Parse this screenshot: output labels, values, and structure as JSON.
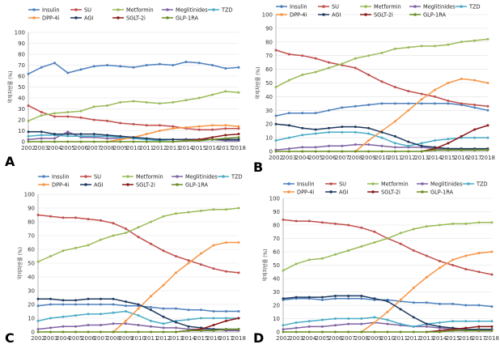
{
  "series_colors": {
    "Insulin": "#4f81bd",
    "SU": "#c0504d",
    "Metformin": "#9bbb59",
    "Meglitinides": "#8064a2",
    "TZD": "#4bacc6",
    "DPP-4i": "#f79646",
    "AGI": "#1f3a5f",
    "SGLT-2i": "#8b1a1a",
    "GLP-1RA": "#6b8e23"
  },
  "chart_data": [
    {
      "type": "line",
      "panel_label": "A",
      "ylabel": "약제처방률 (%)",
      "x": [
        2002,
        2003,
        2004,
        2005,
        2006,
        2007,
        2008,
        2009,
        2010,
        2011,
        2012,
        2013,
        2014,
        2015,
        2016,
        2017,
        2018
      ],
      "xlim": [
        2002,
        2018
      ],
      "ylim": [
        0,
        100
      ],
      "yticks": [
        0,
        10,
        20,
        30,
        40,
        50,
        60,
        70,
        80,
        90,
        100
      ],
      "legend_rows": [
        [
          "Insulin",
          "SU",
          "Metformin",
          "Meglitinides",
          "TZD"
        ],
        [
          "DPP-4i",
          "AGI",
          "SGLT-2i",
          "GLP-1RA"
        ]
      ],
      "series": [
        {
          "name": "Insulin",
          "values": [
            62,
            68,
            72,
            63,
            66,
            69,
            70,
            69,
            68,
            70,
            71,
            70,
            73,
            72,
            70,
            67,
            68
          ]
        },
        {
          "name": "SU",
          "values": [
            33,
            27,
            23,
            23,
            22,
            20,
            19,
            17,
            16,
            15,
            15,
            14,
            12,
            11,
            11,
            12,
            12
          ]
        },
        {
          "name": "Metformin",
          "values": [
            19,
            24,
            26,
            27,
            28,
            32,
            33,
            36,
            37,
            36,
            35,
            36,
            38,
            40,
            43,
            46,
            45
          ]
        },
        {
          "name": "Meglitinides",
          "values": [
            2,
            3,
            3,
            9,
            4,
            4,
            3,
            3,
            3,
            2,
            2,
            2,
            2,
            2,
            2,
            1,
            1
          ]
        },
        {
          "name": "TZD",
          "values": [
            5,
            6,
            6,
            5,
            5,
            5,
            5,
            4,
            3,
            2,
            1,
            2,
            2,
            2,
            2,
            2,
            2
          ]
        },
        {
          "name": "DPP-4i",
          "values": [
            null,
            null,
            null,
            null,
            null,
            null,
            0,
            2,
            4,
            7,
            10,
            12,
            13,
            14,
            15,
            15,
            14
          ]
        },
        {
          "name": "AGI",
          "values": [
            9,
            9,
            7,
            7,
            7,
            7,
            6,
            5,
            4,
            3,
            2,
            2,
            2,
            2,
            2,
            2,
            2
          ]
        },
        {
          "name": "SGLT-2i",
          "values": [
            null,
            null,
            null,
            null,
            null,
            null,
            null,
            null,
            null,
            null,
            null,
            0,
            1,
            2,
            4,
            6,
            7
          ]
        },
        {
          "name": "GLP-1RA",
          "values": [
            0,
            0,
            0,
            0,
            0,
            0,
            0,
            0,
            0,
            0,
            0,
            0,
            1,
            1,
            2,
            3,
            4
          ]
        }
      ]
    },
    {
      "type": "line",
      "panel_label": "B",
      "ylabel": "약제처방률 (%)",
      "x": [
        2002,
        2003,
        2004,
        2005,
        2006,
        2007,
        2008,
        2009,
        2010,
        2011,
        2012,
        2013,
        2014,
        2015,
        2016,
        2017,
        2018
      ],
      "xlim": [
        2002,
        2018
      ],
      "ylim": [
        0,
        100
      ],
      "yticks": [
        0,
        10,
        20,
        30,
        40,
        50,
        60,
        70,
        80,
        90,
        100
      ],
      "legend_rows": [
        [
          "Insulin",
          "SU",
          "Metformin",
          "Meglitinides",
          "TZD"
        ],
        [
          "DPP-4i",
          "AGI",
          "SGLT-2i",
          "GLP-1RA"
        ]
      ],
      "series": [
        {
          "name": "Insulin",
          "values": [
            26,
            28,
            28,
            28,
            30,
            32,
            33,
            34,
            35,
            35,
            35,
            35,
            35,
            35,
            34,
            32,
            30
          ]
        },
        {
          "name": "SU",
          "values": [
            74,
            71,
            70,
            68,
            65,
            63,
            61,
            56,
            51,
            47,
            44,
            42,
            40,
            37,
            35,
            34,
            33
          ]
        },
        {
          "name": "Metformin",
          "values": [
            47,
            52,
            56,
            58,
            61,
            64,
            68,
            70,
            72,
            75,
            76,
            77,
            77,
            78,
            80,
            81,
            82
          ]
        },
        {
          "name": "Meglitinides",
          "values": [
            1,
            2,
            3,
            3,
            4,
            4,
            5,
            5,
            4,
            3,
            3,
            3,
            2,
            2,
            2,
            1,
            1
          ]
        },
        {
          "name": "TZD",
          "values": [
            8,
            10,
            12,
            13,
            14,
            14,
            14,
            13,
            10,
            6,
            4,
            6,
            8,
            9,
            10,
            10,
            10
          ]
        },
        {
          "name": "DPP-4i",
          "values": [
            null,
            null,
            null,
            null,
            null,
            null,
            0,
            8,
            15,
            22,
            30,
            38,
            45,
            50,
            53,
            52,
            50
          ]
        },
        {
          "name": "AGI",
          "values": [
            20,
            19,
            17,
            16,
            17,
            18,
            18,
            17,
            14,
            11,
            7,
            4,
            3,
            2,
            2,
            2,
            2
          ]
        },
        {
          "name": "SGLT-2i",
          "values": [
            null,
            null,
            null,
            null,
            null,
            null,
            null,
            null,
            null,
            null,
            null,
            0,
            2,
            6,
            11,
            16,
            19
          ]
        },
        {
          "name": "GLP-1RA",
          "values": [
            0,
            0,
            0,
            0,
            0,
            0,
            0,
            0,
            0,
            0,
            0,
            0,
            1,
            1,
            1,
            1,
            1
          ]
        }
      ]
    },
    {
      "type": "line",
      "panel_label": "C",
      "ylabel": "약제처방률 (%)",
      "x": [
        2002,
        2003,
        2004,
        2005,
        2006,
        2007,
        2008,
        2009,
        2010,
        2011,
        2012,
        2013,
        2014,
        2015,
        2016,
        2017,
        2018
      ],
      "xlim": [
        2002,
        2018
      ],
      "ylim": [
        0,
        100
      ],
      "yticks": [
        0,
        10,
        20,
        30,
        40,
        50,
        60,
        70,
        80,
        90,
        100
      ],
      "legend_rows": [
        [
          "Insulin",
          "SU",
          "Metformin",
          "Meglitinides",
          "TZD"
        ],
        [
          "DPP-4i",
          "AGI",
          "SGLT-2i",
          "GLP-1RA"
        ]
      ],
      "series": [
        {
          "name": "Insulin",
          "values": [
            19,
            20,
            20,
            20,
            20,
            20,
            20,
            19,
            19,
            18,
            17,
            17,
            16,
            16,
            15,
            15,
            15
          ]
        },
        {
          "name": "SU",
          "values": [
            85,
            84,
            83,
            83,
            82,
            81,
            79,
            75,
            69,
            64,
            59,
            55,
            52,
            49,
            46,
            44,
            43
          ]
        },
        {
          "name": "Metformin",
          "values": [
            51,
            55,
            59,
            61,
            63,
            67,
            70,
            72,
            76,
            80,
            84,
            86,
            87,
            88,
            89,
            89,
            90
          ]
        },
        {
          "name": "Meglitinides",
          "values": [
            2,
            3,
            4,
            4,
            5,
            5,
            6,
            6,
            5,
            4,
            3,
            3,
            2,
            2,
            2,
            1,
            1
          ]
        },
        {
          "name": "TZD",
          "values": [
            8,
            10,
            11,
            12,
            13,
            13,
            14,
            15,
            12,
            8,
            6,
            8,
            9,
            10,
            10,
            10,
            10
          ]
        },
        {
          "name": "DPP-4i",
          "values": [
            null,
            null,
            null,
            null,
            null,
            null,
            0,
            8,
            17,
            26,
            34,
            43,
            50,
            57,
            63,
            65,
            65
          ]
        },
        {
          "name": "AGI",
          "values": [
            24,
            24,
            23,
            23,
            24,
            24,
            24,
            22,
            20,
            16,
            11,
            7,
            4,
            3,
            2,
            2,
            2
          ]
        },
        {
          "name": "SGLT-2i",
          "values": [
            null,
            null,
            null,
            null,
            null,
            null,
            null,
            null,
            null,
            null,
            null,
            0,
            1,
            2,
            5,
            8,
            10
          ]
        },
        {
          "name": "GLP-1RA",
          "values": [
            0,
            0,
            0,
            0,
            0,
            0,
            0,
            0,
            0,
            0,
            0,
            0,
            1,
            1,
            1,
            2,
            2
          ]
        }
      ]
    },
    {
      "type": "line",
      "panel_label": "D",
      "ylabel": "약제처방률 (%)",
      "x": [
        2002,
        2003,
        2004,
        2005,
        2006,
        2007,
        2008,
        2009,
        2010,
        2011,
        2012,
        2013,
        2014,
        2015,
        2016,
        2017,
        2018
      ],
      "xlim": [
        2002,
        2018
      ],
      "ylim": [
        0,
        100
      ],
      "yticks": [
        0,
        10,
        20,
        30,
        40,
        50,
        60,
        70,
        80,
        90,
        100
      ],
      "legend_rows": [
        [
          "Insulin",
          "SU",
          "Metformin",
          "Meglitinides",
          "TZD"
        ],
        [
          "DPP-4i",
          "AGI",
          "SGLT-2i",
          "GLP-1RA"
        ]
      ],
      "series": [
        {
          "name": "Insulin",
          "values": [
            24,
            25,
            25,
            24,
            25,
            25,
            25,
            24,
            24,
            23,
            22,
            22,
            21,
            21,
            20,
            20,
            19
          ]
        },
        {
          "name": "SU",
          "values": [
            84,
            83,
            83,
            82,
            81,
            80,
            78,
            75,
            70,
            66,
            61,
            57,
            53,
            50,
            47,
            45,
            43
          ]
        },
        {
          "name": "Metformin",
          "values": [
            46,
            51,
            54,
            55,
            58,
            61,
            64,
            67,
            70,
            74,
            77,
            79,
            80,
            81,
            81,
            82,
            82
          ]
        },
        {
          "name": "Meglitinides",
          "values": [
            2,
            3,
            4,
            4,
            5,
            6,
            6,
            7,
            6,
            5,
            4,
            4,
            3,
            2,
            2,
            1,
            1
          ]
        },
        {
          "name": "TZD",
          "values": [
            5,
            7,
            8,
            9,
            10,
            10,
            10,
            11,
            9,
            6,
            4,
            6,
            7,
            8,
            8,
            8,
            8
          ]
        },
        {
          "name": "DPP-4i",
          "values": [
            null,
            null,
            null,
            null,
            null,
            null,
            0,
            7,
            15,
            24,
            33,
            41,
            48,
            54,
            57,
            59,
            60
          ]
        },
        {
          "name": "AGI",
          "values": [
            25,
            26,
            26,
            26,
            27,
            27,
            27,
            25,
            23,
            17,
            11,
            6,
            4,
            3,
            2,
            2,
            2
          ]
        },
        {
          "name": "SGLT-2i",
          "values": [
            null,
            null,
            null,
            null,
            null,
            null,
            null,
            null,
            null,
            null,
            null,
            0,
            1,
            2,
            3,
            4,
            4
          ]
        },
        {
          "name": "GLP-1RA",
          "values": [
            0,
            0,
            0,
            0,
            0,
            0,
            0,
            0,
            0,
            0,
            0,
            0,
            0,
            1,
            1,
            1,
            1
          ]
        }
      ]
    }
  ]
}
